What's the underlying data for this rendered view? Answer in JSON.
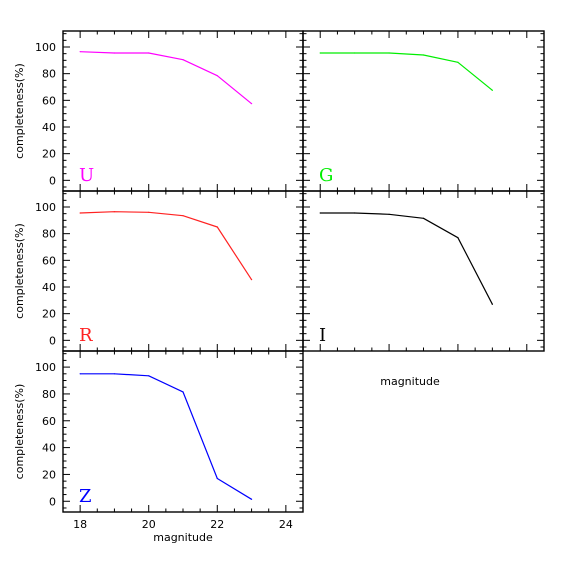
{
  "chart_data": [
    {
      "type": "line",
      "band_label": "U",
      "color": "#ff00ff",
      "x": [
        18,
        19,
        20,
        21,
        22,
        23
      ],
      "y": [
        96.5,
        95.5,
        95.5,
        90.5,
        78.5,
        57.5
      ],
      "ylabel": "completeness(%)",
      "xlabel": "",
      "xlim": [
        17.5,
        24.5
      ],
      "ylim": [
        -8,
        112
      ],
      "yticks": [
        "0",
        "20",
        "40",
        "60",
        "80",
        "100"
      ],
      "xticks": []
    },
    {
      "type": "line",
      "band_label": "G",
      "color": "#00ee00",
      "x": [
        18,
        19,
        20,
        21,
        22,
        23
      ],
      "y": [
        95.5,
        95.5,
        95.5,
        94.0,
        88.5,
        67.5
      ],
      "ylabel": "",
      "xlabel": "",
      "xlim": [
        17.5,
        24.5
      ],
      "ylim": [
        -8,
        112
      ],
      "yticks": [],
      "xticks": []
    },
    {
      "type": "line",
      "band_label": "R",
      "color": "#ff2222",
      "x": [
        18,
        19,
        20,
        21,
        22,
        23
      ],
      "y": [
        95.5,
        96.5,
        96.0,
        93.5,
        85.0,
        45.5
      ],
      "ylabel": "completeness(%)",
      "xlabel": "",
      "xlim": [
        17.5,
        24.5
      ],
      "ylim": [
        -8,
        112
      ],
      "yticks": [
        "0",
        "20",
        "40",
        "60",
        "80",
        "100"
      ],
      "xticks": []
    },
    {
      "type": "line",
      "band_label": "I",
      "color": "#000000",
      "x": [
        18,
        19,
        20,
        21,
        22,
        23
      ],
      "y": [
        95.5,
        95.5,
        94.5,
        91.5,
        77.0,
        27.0
      ],
      "ylabel": "",
      "xlabel": "magnitude",
      "xlim": [
        17.5,
        24.5
      ],
      "ylim": [
        -8,
        112
      ],
      "yticks": [],
      "xticks": []
    },
    {
      "type": "line",
      "band_label": "Z",
      "color": "#0000ff",
      "x": [
        18,
        19,
        20,
        21,
        22,
        23
      ],
      "y": [
        95.0,
        95.0,
        93.5,
        81.5,
        17.0,
        1.5
      ],
      "ylabel": "completeness(%)",
      "xlabel": "magnitude",
      "xlim": [
        17.5,
        24.5
      ],
      "ylim": [
        -8,
        112
      ],
      "yticks": [
        "0",
        "20",
        "40",
        "60",
        "80",
        "100"
      ],
      "xticks": [
        "18",
        "20",
        "22",
        "24"
      ]
    }
  ]
}
